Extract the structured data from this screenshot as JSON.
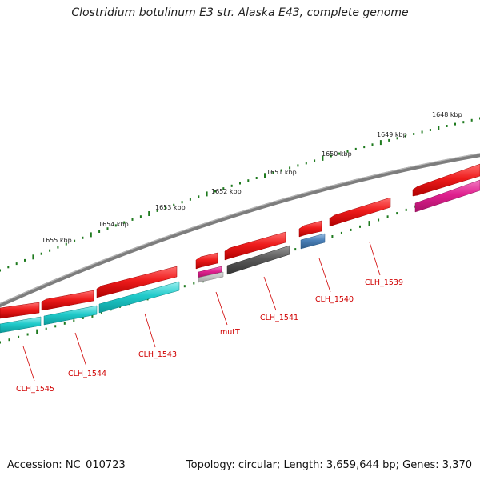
{
  "title": "Clostridium botulinum E3 str. Alaska E43, complete genome",
  "footer": {
    "accession": "Accession: NC_010723",
    "info": "Topology: circular; Length: 3,659,644 bp; Genes: 3,370"
  },
  "colors": {
    "backbone": "#7d7d7d",
    "tick": "#1e7a1e",
    "cds_forward": "#e81818",
    "cog_cyan": "#1ec8c8",
    "cog_magenta": "#e0208f",
    "cog_gray": "#555555",
    "cog_blue": "#4a80b8",
    "label": "#d00000"
  },
  "ruler_labels": [
    "1648 kbp",
    "1649 kbp",
    "1650 kbp",
    "1651 kbp",
    "1652 kbp",
    "1653 kbp",
    "1654 kbp",
    "1655 kbp"
  ],
  "genes": [
    {
      "label": "CLH_1539",
      "cds_color": "#e81818",
      "cog_color": "#e0208f"
    },
    {
      "label": "CLH_1540",
      "cds_color": "#e81818",
      "cog_color": "#4a80b8"
    },
    {
      "label": "CLH_1541",
      "cds_color": "#e81818",
      "cog_color": "#555555"
    },
    {
      "label": "mutT",
      "cds_color": "#e81818",
      "cog_color": "#e0208f"
    },
    {
      "label": "CLH_1543",
      "cds_color": "#e81818",
      "cog_color": "#1ec8c8"
    },
    {
      "label": "CLH_1544",
      "cds_color": "#e81818",
      "cog_color": "#1ec8c8"
    },
    {
      "label": "CLH_1545",
      "cds_color": "#e81818",
      "cog_color": "#1ec8c8"
    }
  ]
}
